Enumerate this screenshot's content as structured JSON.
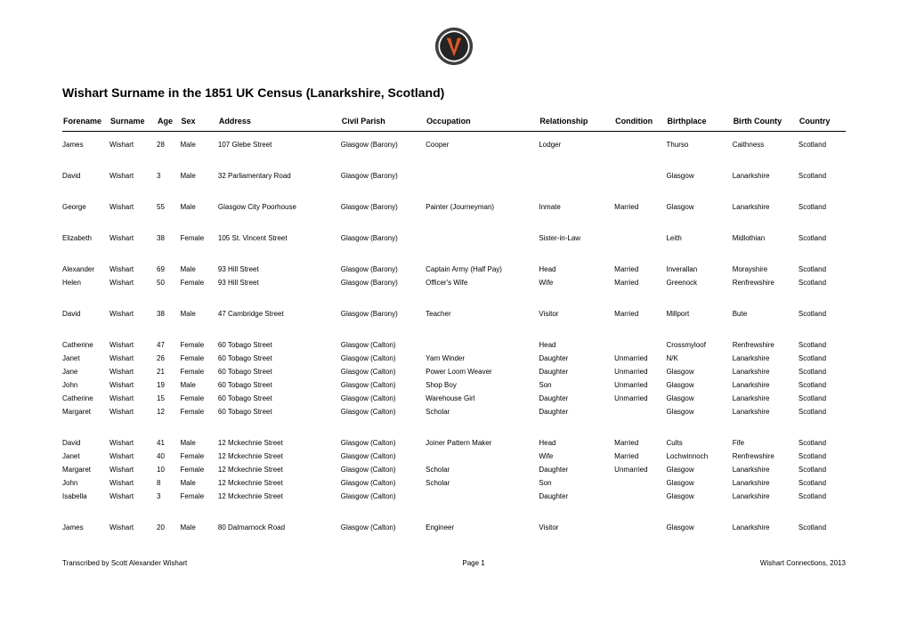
{
  "title": "Wishart Surname in the 1851 UK Census (Lanarkshire, Scotland)",
  "columns": [
    "Forename",
    "Surname",
    "Age",
    "Sex",
    "Address",
    "Civil Parish",
    "Occupation",
    "Relationship",
    "Condition",
    "Birthplace",
    "Birth County",
    "Country"
  ],
  "groups": [
    [
      [
        "James",
        "Wishart",
        "28",
        "Male",
        "107 Glebe Street",
        "Glasgow (Barony)",
        "Cooper",
        "Lodger",
        "",
        "Thurso",
        "Caithness",
        "Scotland"
      ]
    ],
    [
      [
        "David",
        "Wishart",
        "3",
        "Male",
        "32 Parliamentary Road",
        "Glasgow (Barony)",
        "",
        "",
        "",
        "Glasgow",
        "Lanarkshire",
        "Scotland"
      ]
    ],
    [
      [
        "George",
        "Wishart",
        "55",
        "Male",
        "Glasgow City Poorhouse",
        "Glasgow (Barony)",
        "Painter (Journeyman)",
        "Inmate",
        "Married",
        "Glasgow",
        "Lanarkshire",
        "Scotland"
      ]
    ],
    [
      [
        "Elizabeth",
        "Wishart",
        "38",
        "Female",
        "105 St. Vincent Street",
        "Glasgow (Barony)",
        "",
        "Sister-in-Law",
        "",
        "Leith",
        "Midlothian",
        "Scotland"
      ]
    ],
    [
      [
        "Alexander",
        "Wishart",
        "69",
        "Male",
        "93 Hill Street",
        "Glasgow (Barony)",
        "Captain Army (Half Pay)",
        "Head",
        "Married",
        "Inverallan",
        "Morayshire",
        "Scotland"
      ],
      [
        "Helen",
        "Wishart",
        "50",
        "Female",
        "93 Hill Street",
        "Glasgow (Barony)",
        "Officer's Wife",
        "Wife",
        "Married",
        "Greenock",
        "Renfrewshire",
        "Scotland"
      ]
    ],
    [
      [
        "David",
        "Wishart",
        "38",
        "Male",
        "47 Cambridge Street",
        "Glasgow (Barony)",
        "Teacher",
        "Visitor",
        "Married",
        "Millport",
        "Bute",
        "Scotland"
      ]
    ],
    [
      [
        "Catherine",
        "Wishart",
        "47",
        "Female",
        "60 Tobago Street",
        "Glasgow (Calton)",
        "",
        "Head",
        "",
        "Crossmyloof",
        "Renfrewshire",
        "Scotland"
      ],
      [
        "Janet",
        "Wishart",
        "26",
        "Female",
        "60 Tobago Street",
        "Glasgow (Calton)",
        "Yarn Winder",
        "Daughter",
        "Unmarried",
        "N/K",
        "Lanarkshire",
        "Scotland"
      ],
      [
        "Jane",
        "Wishart",
        "21",
        "Female",
        "60 Tobago Street",
        "Glasgow (Calton)",
        "Power Loom Weaver",
        "Daughter",
        "Unmarried",
        "Glasgow",
        "Lanarkshire",
        "Scotland"
      ],
      [
        "John",
        "Wishart",
        "19",
        "Male",
        "60 Tobago Street",
        "Glasgow (Calton)",
        "Shop Boy",
        "Son",
        "Unmarried",
        "Glasgow",
        "Lanarkshire",
        "Scotland"
      ],
      [
        "Catherine",
        "Wishart",
        "15",
        "Female",
        "60 Tobago Street",
        "Glasgow (Calton)",
        "Warehouse Girl",
        "Daughter",
        "Unmarried",
        "Glasgow",
        "Lanarkshire",
        "Scotland"
      ],
      [
        "Margaret",
        "Wishart",
        "12",
        "Female",
        "60 Tobago Street",
        "Glasgow (Calton)",
        "Scholar",
        "Daughter",
        "",
        "Glasgow",
        "Lanarkshire",
        "Scotland"
      ]
    ],
    [
      [
        "David",
        "Wishart",
        "41",
        "Male",
        "12 Mckechnie Street",
        "Glasgow (Calton)",
        "Joiner Pattern Maker",
        "Head",
        "Married",
        "Cults",
        "Fife",
        "Scotland"
      ],
      [
        "Janet",
        "Wishart",
        "40",
        "Female",
        "12 Mckechnie Street",
        "Glasgow (Calton)",
        "",
        "Wife",
        "Married",
        "Lochwinnoch",
        "Renfrewshire",
        "Scotland"
      ],
      [
        "Margaret",
        "Wishart",
        "10",
        "Female",
        "12 Mckechnie Street",
        "Glasgow (Calton)",
        "Scholar",
        "Daughter",
        "Unmarried",
        "Glasgow",
        "Lanarkshire",
        "Scotland"
      ],
      [
        "John",
        "Wishart",
        "8",
        "Male",
        "12 Mckechnie Street",
        "Glasgow (Calton)",
        "Scholar",
        "Son",
        "",
        "Glasgow",
        "Lanarkshire",
        "Scotland"
      ],
      [
        "Isabella",
        "Wishart",
        "3",
        "Female",
        "12 Mckechnie Street",
        "Glasgow (Calton)",
        "",
        "Daughter",
        "",
        "Glasgow",
        "Lanarkshire",
        "Scotland"
      ]
    ],
    [
      [
        "James",
        "Wishart",
        "20",
        "Male",
        "80 Dalmarnock Road",
        "Glasgow (Calton)",
        "Engineer",
        "Visitor",
        "",
        "Glasgow",
        "Lanarkshire",
        "Scotland"
      ]
    ]
  ],
  "footer": {
    "left": "Transcribed by Scott Alexander Wishart",
    "center": "Page 1",
    "right": "Wishart Connections, 2013"
  },
  "logo": {
    "outer_fill": "#3e403f",
    "ring_fill": "#ffffff",
    "band_fill": "#242424",
    "v_fill": "#d15a2b",
    "v_stroke": "#000000"
  }
}
